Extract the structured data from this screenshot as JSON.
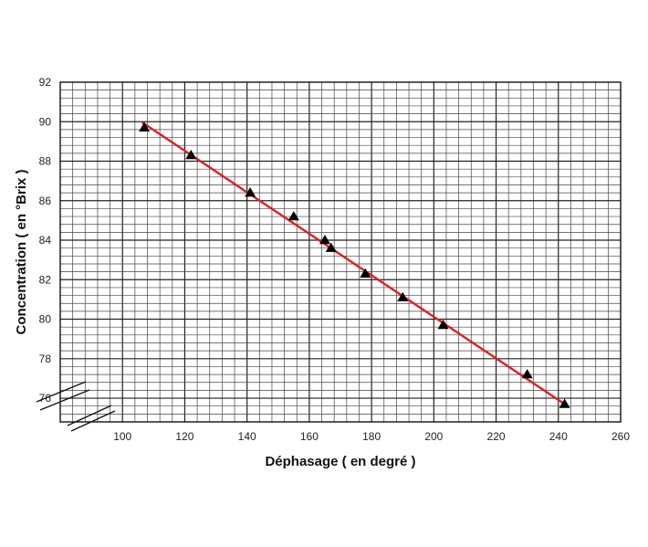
{
  "chart_data": {
    "type": "scatter",
    "xlabel": "Déphasage ( en degré )",
    "ylabel": "Concentration ( en °Brix )",
    "xlim": [
      80,
      260
    ],
    "ylim": [
      74.8,
      92
    ],
    "x_ticks": [
      100,
      120,
      140,
      160,
      180,
      200,
      220,
      240,
      260
    ],
    "y_ticks": [
      76,
      78,
      80,
      82,
      84,
      86,
      88,
      90,
      92
    ],
    "grid": true,
    "axis_break": true,
    "series": [
      {
        "marker": "triangle",
        "x": [
          107,
          122,
          141,
          155,
          165,
          167,
          178,
          190,
          203,
          230,
          242
        ],
        "y": [
          89.7,
          88.3,
          86.4,
          85.2,
          84.0,
          83.6,
          82.3,
          81.1,
          79.7,
          77.2,
          75.7
        ]
      }
    ],
    "trendline": {
      "x": [
        106.5,
        243
      ],
      "y": [
        89.95,
        75.6
      ]
    },
    "colors": {
      "markers": "#000000",
      "trendline": "#e01f1f",
      "grid": "#444444"
    }
  }
}
